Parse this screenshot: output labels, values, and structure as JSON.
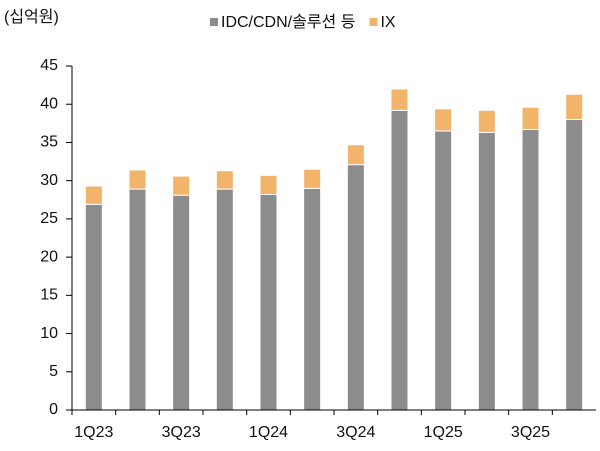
{
  "chart_data": {
    "type": "stacked_bar",
    "unit_label": "(십억원)",
    "categories": [
      "1Q23",
      null,
      "3Q23",
      null,
      "1Q24",
      null,
      "3Q24",
      null,
      "1Q25",
      null,
      "3Q25",
      null
    ],
    "series": [
      {
        "name": "IDC/CDN/솔루션 등",
        "color": "#8c8c8c",
        "values": [
          26.9,
          28.9,
          28.1,
          28.9,
          28.2,
          29.0,
          32.1,
          39.2,
          36.5,
          36.3,
          36.7,
          38.0
        ]
      },
      {
        "name": "IX",
        "color": "#f2b36b",
        "values": [
          2.4,
          2.5,
          2.5,
          2.4,
          2.5,
          2.5,
          2.6,
          2.8,
          2.9,
          2.9,
          2.9,
          3.3
        ]
      }
    ],
    "ylim": [
      0,
      45
    ],
    "yticks": [
      0,
      5,
      10,
      15,
      20,
      25,
      30,
      35,
      40,
      45
    ]
  }
}
